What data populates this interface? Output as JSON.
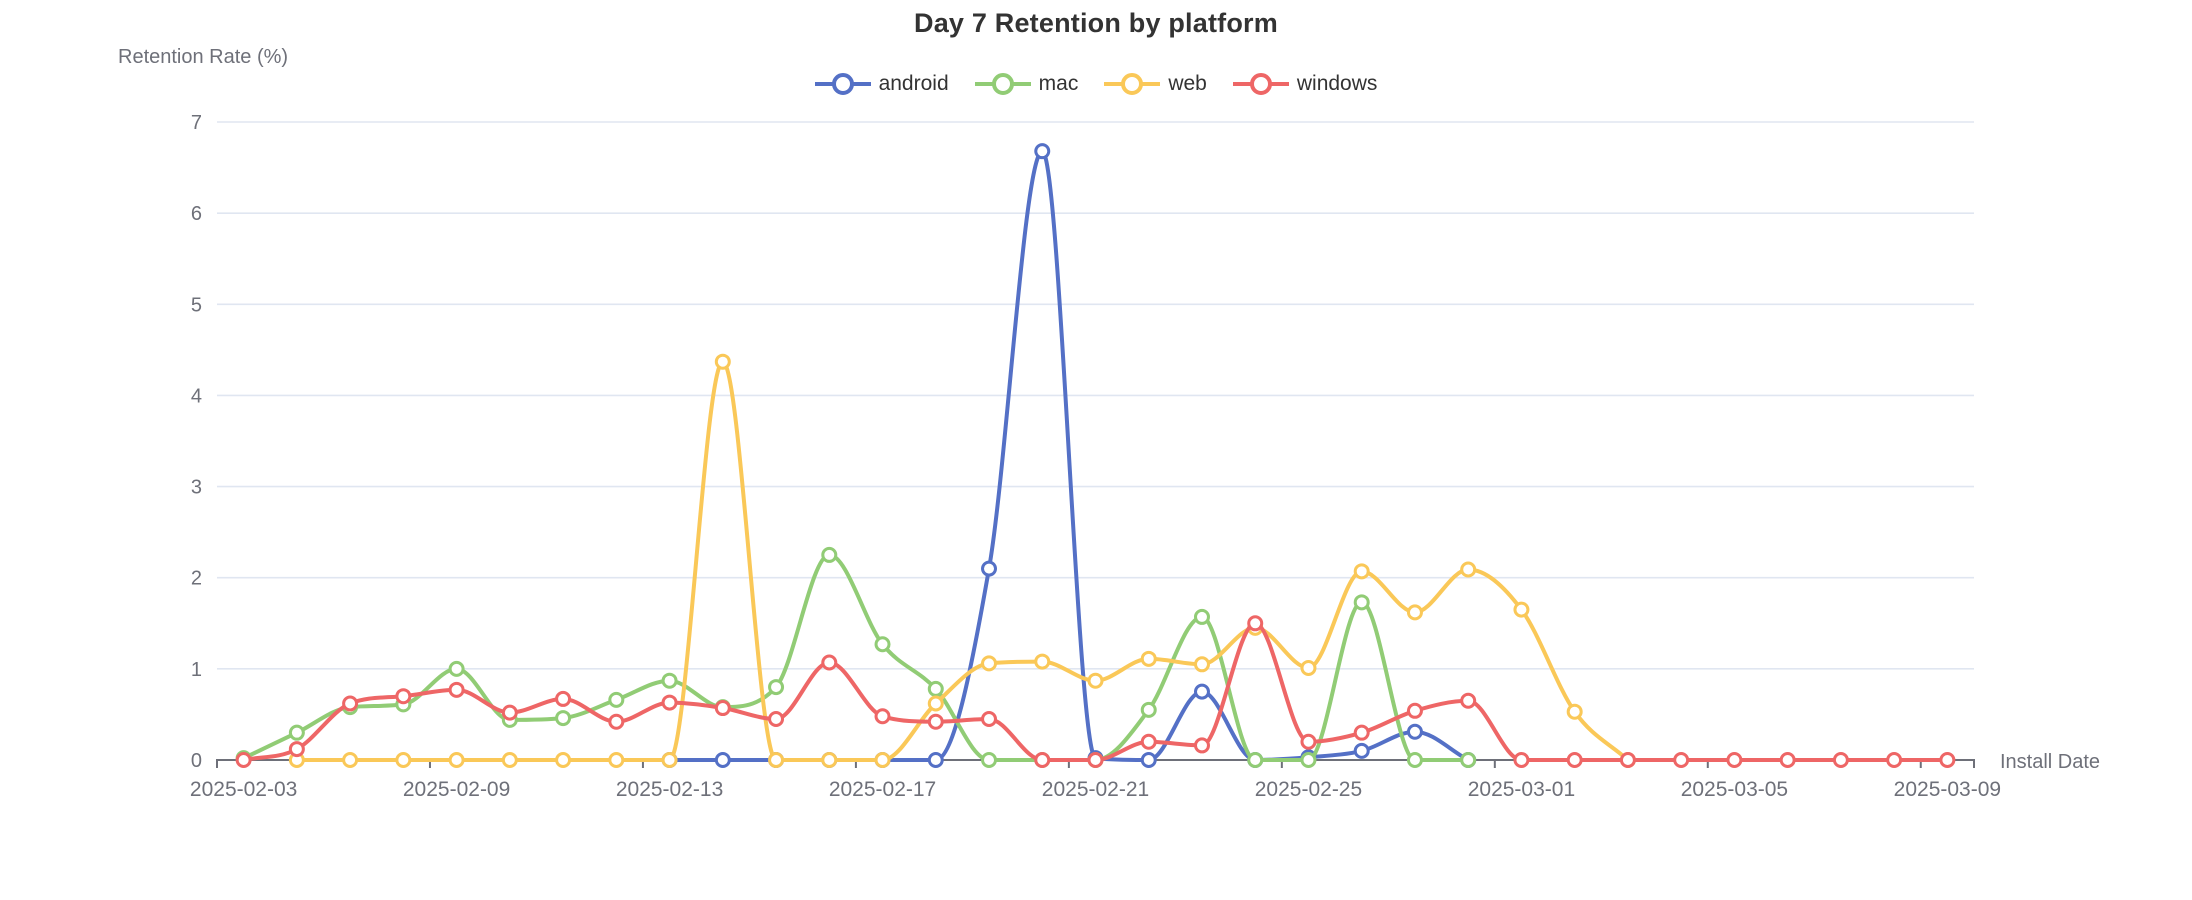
{
  "title": "Day 7 Retention by platform",
  "y_axis": {
    "name": "Retention Rate (%)"
  },
  "x_axis": {
    "name": "Install Date"
  },
  "palette": {
    "android": "#5470C6",
    "mac": "#91CC75",
    "web": "#FAC858",
    "windows": "#EE6666",
    "grid_line": "#E0E6F1",
    "axis_line": "#6E7079",
    "axis_label": "#6E7079",
    "title_text": "#333333",
    "legend_text": "#333333"
  },
  "chart_data": {
    "type": "line",
    "smooth": true,
    "grid": true,
    "legend_position": "top",
    "title": "Day 7 Retention by platform",
    "xlabel": "Install Date",
    "ylabel": "Retention Rate (%)",
    "ylim": [
      0,
      7
    ],
    "y_ticks": [
      0,
      1,
      2,
      3,
      4,
      5,
      6,
      7
    ],
    "x_label_every": 4,
    "categories": [
      "2025-02-03",
      "2025-02-05",
      "2025-02-06",
      "2025-02-07",
      "2025-02-09",
      "2025-02-10",
      "2025-02-11",
      "2025-02-12",
      "2025-02-13",
      "2025-02-14",
      "2025-02-15",
      "2025-02-16",
      "2025-02-17",
      "2025-02-18",
      "2025-02-19",
      "2025-02-20",
      "2025-02-21",
      "2025-02-22",
      "2025-02-23",
      "2025-02-24",
      "2025-02-25",
      "2025-02-26",
      "2025-02-27",
      "2025-02-28",
      "2025-03-01",
      "2025-03-02",
      "2025-03-03",
      "2025-03-04",
      "2025-03-05",
      "2025-03-06",
      "2025-03-07",
      "2025-03-08",
      "2025-03-09"
    ],
    "series": [
      {
        "name": "android",
        "color": "#5470C6",
        "values": [
          null,
          null,
          null,
          null,
          null,
          null,
          null,
          null,
          0,
          0,
          0,
          0,
          0,
          0,
          2.1,
          6.68,
          0.02,
          0,
          0.75,
          0,
          0.03,
          0.1,
          0.31,
          0,
          null,
          null,
          null,
          null,
          null,
          null,
          null,
          null,
          null
        ]
      },
      {
        "name": "mac",
        "color": "#91CC75",
        "values": [
          0.02,
          0.3,
          0.58,
          0.61,
          1.0,
          0.44,
          0.46,
          0.66,
          0.87,
          0.58,
          0.8,
          2.25,
          1.27,
          0.78,
          0,
          0,
          0,
          0.55,
          1.57,
          0,
          0,
          1.73,
          0,
          0,
          null,
          null,
          null,
          null,
          null,
          null,
          null,
          null,
          null
        ]
      },
      {
        "name": "web",
        "color": "#FAC858",
        "values": [
          null,
          0,
          0,
          0,
          0,
          0,
          0,
          0,
          0,
          4.37,
          0,
          0,
          0,
          0.62,
          1.06,
          1.08,
          0.87,
          1.11,
          1.05,
          1.45,
          1.01,
          2.07,
          1.62,
          2.09,
          1.65,
          0.53,
          0,
          null,
          null,
          null,
          null,
          null,
          null
        ]
      },
      {
        "name": "windows",
        "color": "#EE6666",
        "values": [
          0,
          0.12,
          0.62,
          0.7,
          0.77,
          0.52,
          0.67,
          0.42,
          0.63,
          0.57,
          0.45,
          1.07,
          0.48,
          0.42,
          0.45,
          0,
          0,
          0.2,
          0.16,
          1.5,
          0.2,
          0.3,
          0.54,
          0.65,
          0,
          0,
          0,
          0,
          0,
          0,
          0,
          0,
          0
        ]
      }
    ]
  }
}
